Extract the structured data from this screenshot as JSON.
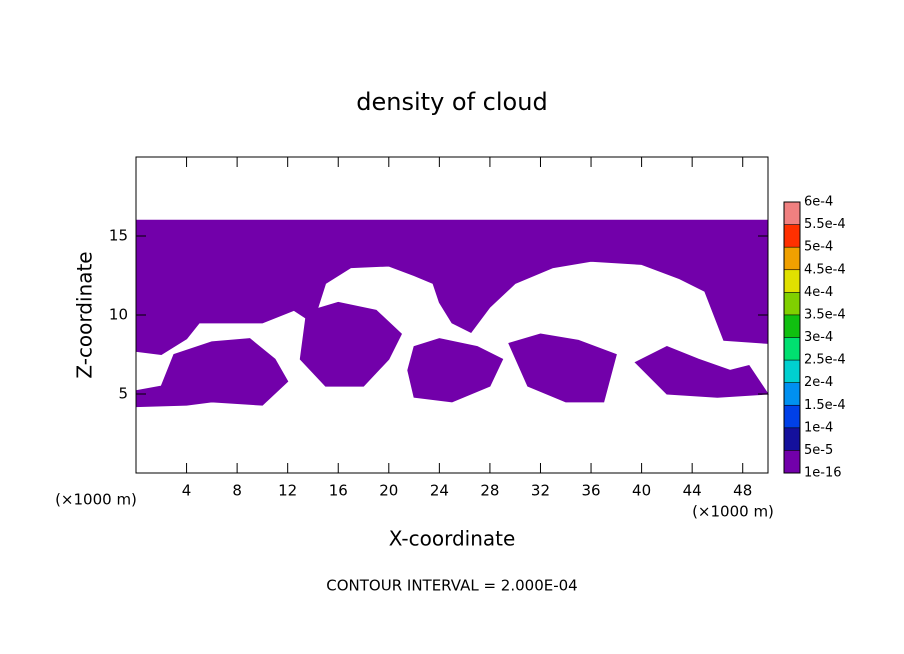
{
  "chart_data": {
    "type": "contour",
    "title": "density of cloud",
    "xlabel": "X-coordinate",
    "ylabel": "Z-coordinate",
    "x_unit": "(×1000 m)",
    "footer": "CONTOUR INTERVAL = 2.000E-04",
    "xlim": [
      0,
      50
    ],
    "ylim": [
      0,
      20
    ],
    "xticks": [
      4,
      8,
      12,
      16,
      20,
      24,
      28,
      32,
      36,
      40,
      44,
      48
    ],
    "yticks": [
      5,
      10,
      15
    ],
    "fill": "#7200aa",
    "regions": [
      {
        "x": [
          0,
          50,
          50,
          46.5,
          45,
          43,
          40,
          36,
          33,
          30,
          28,
          26.5,
          25,
          24,
          23.5,
          22,
          20,
          17,
          15,
          14,
          12.5,
          10,
          5,
          4,
          2,
          0
        ],
        "z": [
          16,
          16,
          8.2,
          8.4,
          11.5,
          12.3,
          13.2,
          13.4,
          13.0,
          12.0,
          10.5,
          8.9,
          9.5,
          10.8,
          12.0,
          12.5,
          13.1,
          13.0,
          12.0,
          9.5,
          10.3,
          9.5,
          9.5,
          8.5,
          7.5,
          7.7
        ]
      },
      {
        "x": [
          0,
          2,
          3,
          6,
          9,
          11,
          12,
          10,
          6,
          4,
          0
        ],
        "z": [
          5.2,
          5.5,
          7.5,
          8.3,
          8.5,
          7.2,
          5.8,
          4.3,
          4.5,
          4.3,
          4.2
        ]
      },
      {
        "x": [
          13.5,
          16,
          19,
          21,
          20,
          18,
          15,
          13
        ],
        "z": [
          10.2,
          10.8,
          10.3,
          8.8,
          7.2,
          5.5,
          5.5,
          7.2
        ]
      },
      {
        "x": [
          22,
          24,
          27,
          29,
          28,
          25,
          22,
          21.5
        ],
        "z": [
          8.0,
          8.5,
          8.0,
          7.2,
          5.5,
          4.5,
          4.8,
          6.5
        ]
      },
      {
        "x": [
          29.5,
          32,
          35,
          38,
          37,
          34,
          31
        ],
        "z": [
          8.2,
          8.8,
          8.4,
          7.5,
          4.5,
          4.5,
          5.5
        ]
      },
      {
        "x": [
          39.5,
          42,
          44.5,
          47,
          48.5,
          50,
          46,
          42
        ],
        "z": [
          7.0,
          8.0,
          7.2,
          6.5,
          6.8,
          5.0,
          4.8,
          5.0
        ]
      }
    ],
    "colorbar": {
      "levels": [
        {
          "value": 1e-16,
          "label": "1e-16"
        },
        {
          "value": 5e-05,
          "label": "5e-5"
        },
        {
          "value": 0.0001,
          "label": "1e-4"
        },
        {
          "value": 0.00015,
          "label": "1.5e-4"
        },
        {
          "value": 0.0002,
          "label": "2e-4"
        },
        {
          "value": 0.00025,
          "label": "2.5e-4"
        },
        {
          "value": 0.0003,
          "label": "3e-4"
        },
        {
          "value": 0.00035,
          "label": "3.5e-4"
        },
        {
          "value": 0.0004,
          "label": "4e-4"
        },
        {
          "value": 0.00045,
          "label": "4.5e-4"
        },
        {
          "value": 0.0005,
          "label": "5e-4"
        },
        {
          "value": 0.00055,
          "label": "5.5e-4"
        },
        {
          "value": 0.0006,
          "label": "6e-4"
        }
      ],
      "colors": [
        "#7200aa",
        "#14109c",
        "#0040e8",
        "#0090f0",
        "#00d0d0",
        "#00e070",
        "#10c010",
        "#80d000",
        "#e0e000",
        "#f0a000",
        "#ff3000",
        "#f08080"
      ]
    }
  }
}
